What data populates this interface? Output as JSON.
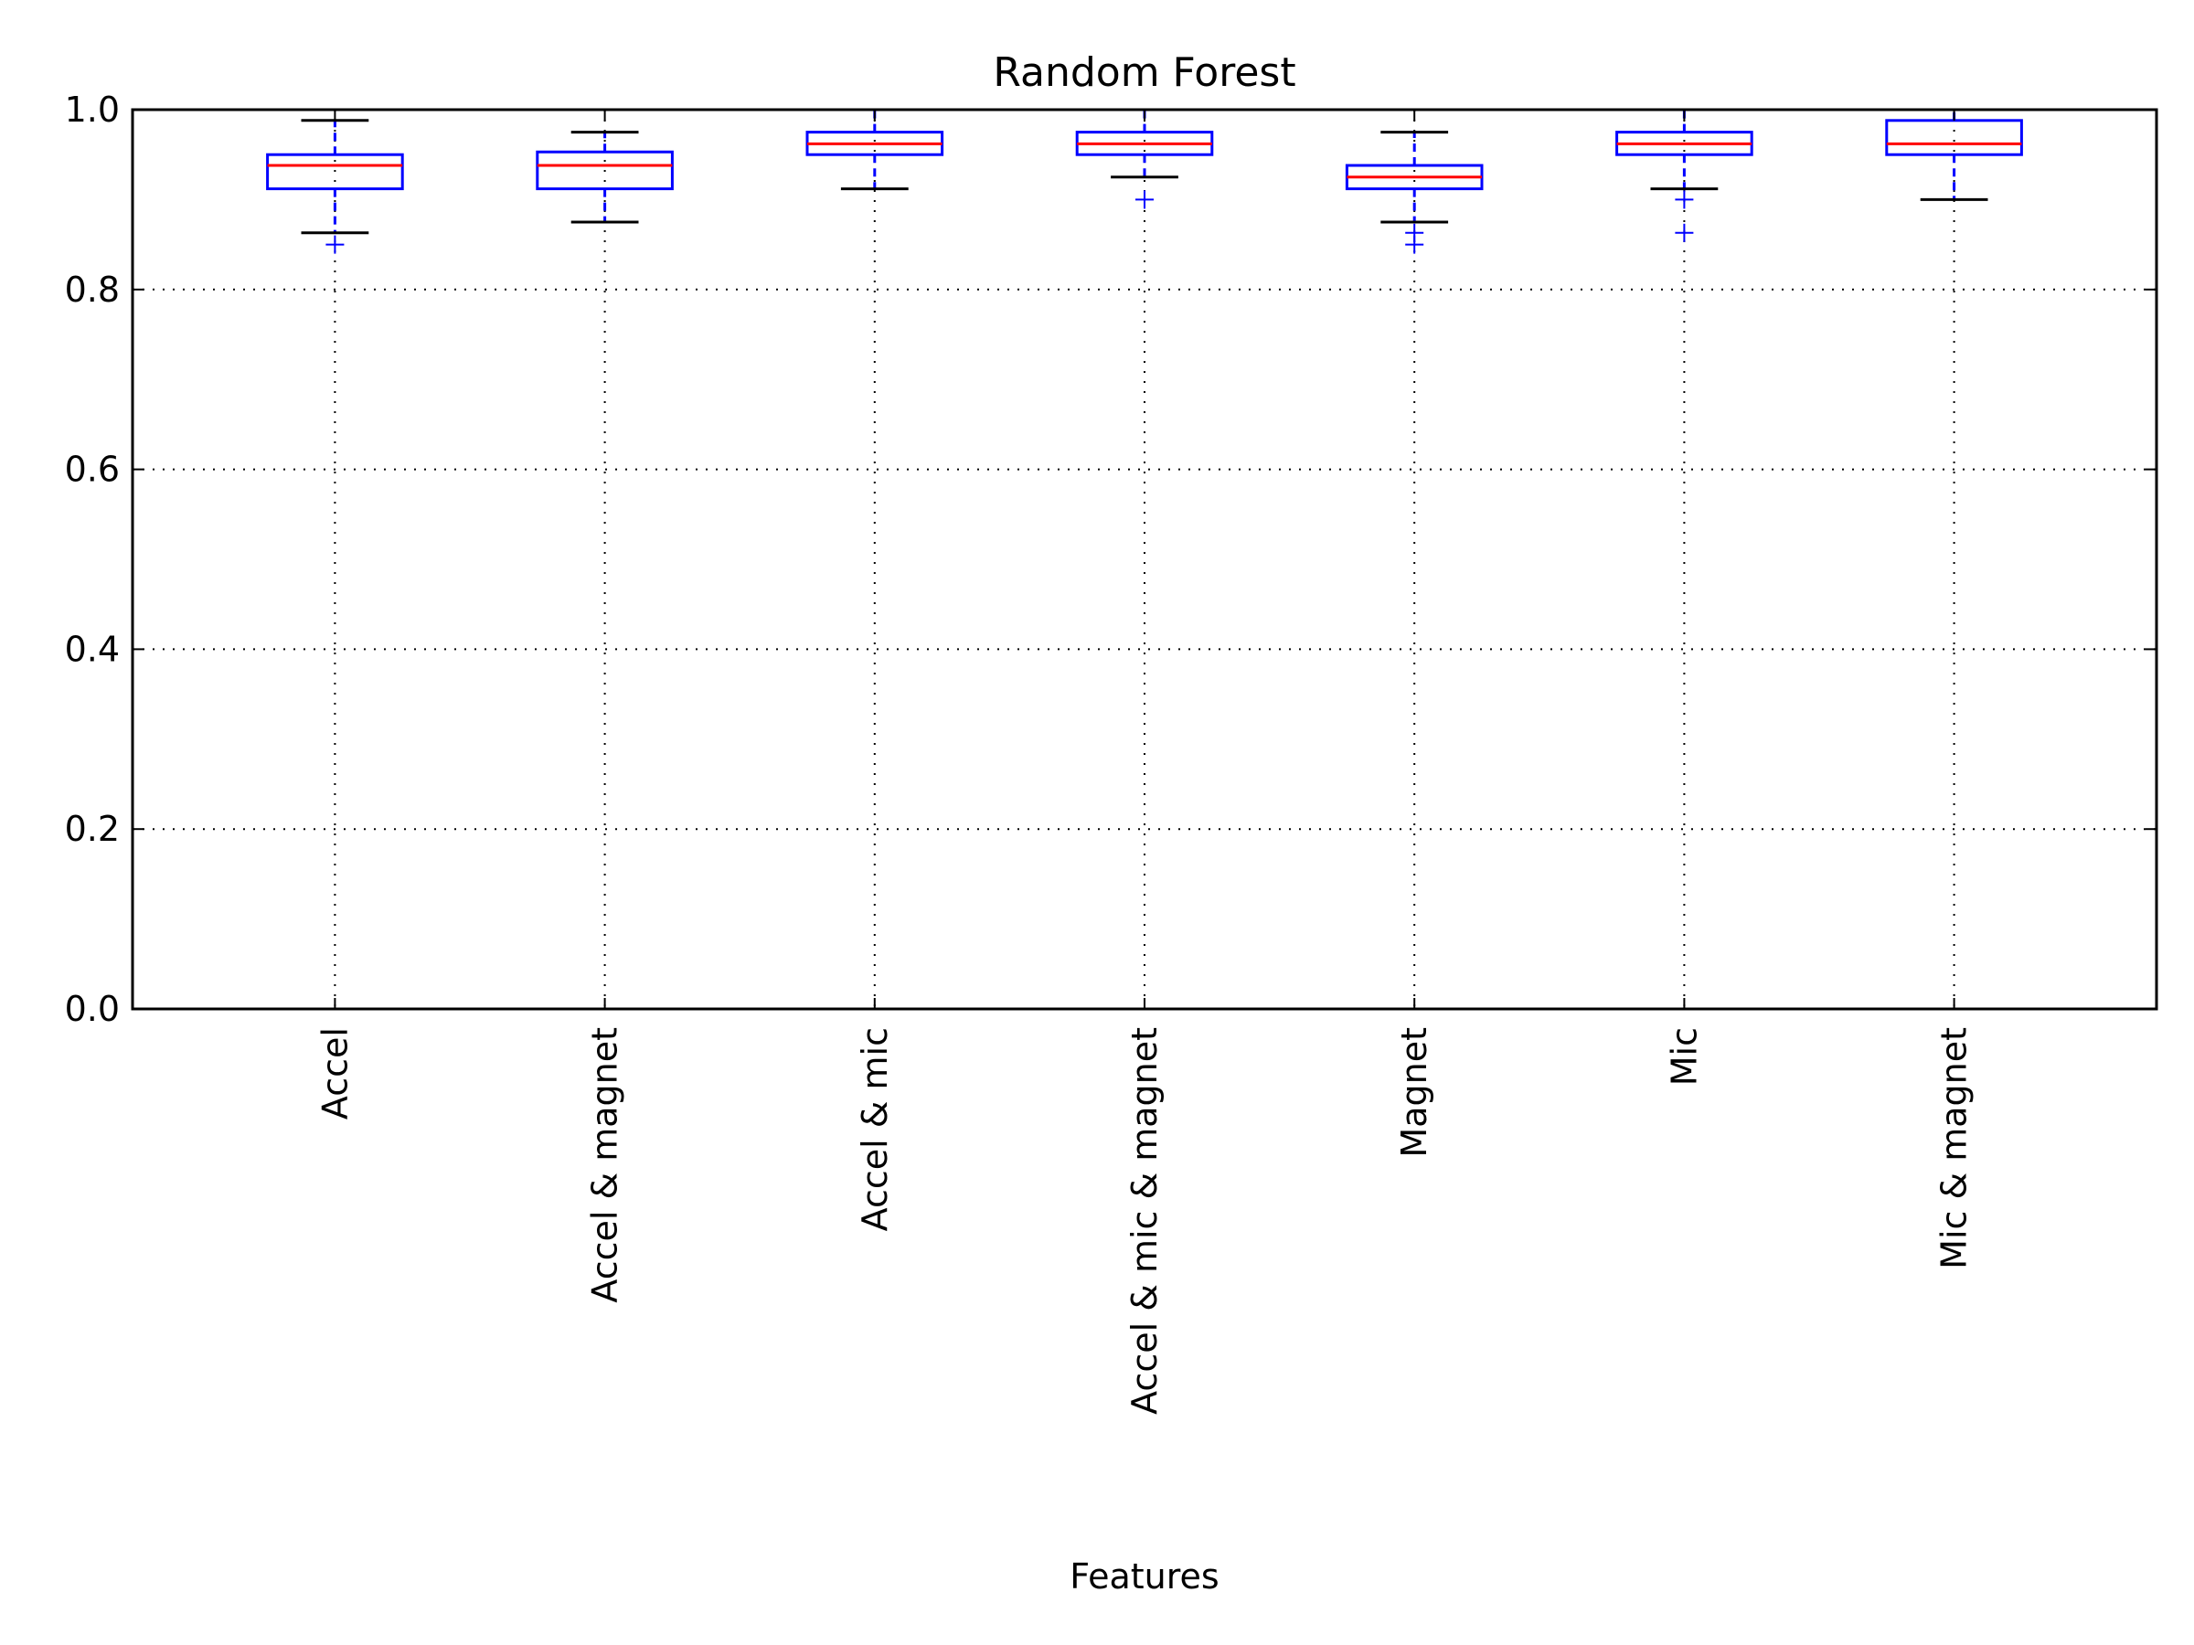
{
  "chart_data": {
    "type": "box",
    "title": "Random Forest",
    "xlabel": "Features",
    "ylabel": "",
    "ylim": [
      0.0,
      1.0
    ],
    "yticks": [
      "0.0",
      "0.2",
      "0.4",
      "0.6",
      "0.8",
      "1.0"
    ],
    "grid": true,
    "categories": [
      "Accel",
      "Accel & magnet",
      "Accel & mic",
      "Accel & mic & magnet",
      "Magnet",
      "Mic",
      "Mic & magnet"
    ],
    "boxes": [
      {
        "whisker_low": 0.863,
        "q1": 0.912,
        "median": 0.938,
        "q3": 0.95,
        "whisker_high": 0.988,
        "outliers": [
          0.85
        ]
      },
      {
        "whisker_low": 0.875,
        "q1": 0.912,
        "median": 0.938,
        "q3": 0.953,
        "whisker_high": 0.975,
        "outliers": []
      },
      {
        "whisker_low": 0.912,
        "q1": 0.95,
        "median": 0.962,
        "q3": 0.975,
        "whisker_high": 1.0,
        "outliers": []
      },
      {
        "whisker_low": 0.925,
        "q1": 0.95,
        "median": 0.962,
        "q3": 0.975,
        "whisker_high": 1.0,
        "outliers": [
          0.9
        ]
      },
      {
        "whisker_low": 0.875,
        "q1": 0.912,
        "median": 0.925,
        "q3": 0.938,
        "whisker_high": 0.975,
        "outliers": [
          0.863,
          0.85
        ]
      },
      {
        "whisker_low": 0.912,
        "q1": 0.95,
        "median": 0.962,
        "q3": 0.975,
        "whisker_high": 1.0,
        "outliers": [
          0.9,
          0.863
        ]
      },
      {
        "whisker_low": 0.9,
        "q1": 0.95,
        "median": 0.962,
        "q3": 0.988,
        "whisker_high": 1.0,
        "outliers": []
      }
    ],
    "colors": {
      "box": "#0000ff",
      "median": "#ff0000",
      "whisker": "#000000",
      "outlier": "#0000ff"
    }
  }
}
